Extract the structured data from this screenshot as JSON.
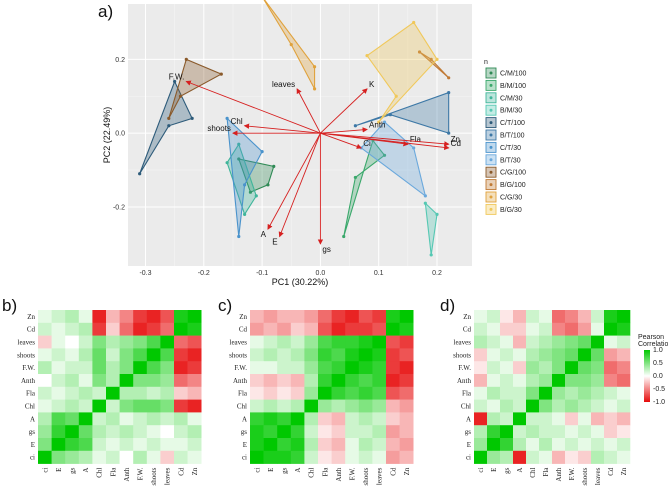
{
  "panels": {
    "a": "a)",
    "b": "b)",
    "c": "c)",
    "d": "d)"
  },
  "chart_data": [
    {
      "type": "scatter",
      "subtype": "pca-biplot",
      "title": "",
      "xlabel": "PC1 (30.22%)",
      "ylabel": "PC2 (22.49%)",
      "xlim": [
        -0.33,
        0.26
      ],
      "ylim": [
        -0.36,
        0.35
      ],
      "xticks": [
        -0.3,
        -0.2,
        -0.1,
        0.0,
        0.1,
        0.2
      ],
      "xtick_labels": [
        "-0.3",
        "-0.2",
        "-0.1",
        "0.0",
        "0.1",
        "0.2"
      ],
      "yticks": [
        -0.2,
        0.0,
        0.2
      ],
      "ytick_labels": [
        "-0.2",
        "0.0",
        "0.2"
      ],
      "legend_title": "n",
      "groups": [
        {
          "name": "C/M/100",
          "color": "#2f8a55",
          "points": [
            [
              -0.14,
              -0.07
            ],
            [
              -0.08,
              -0.09
            ],
            [
              -0.09,
              -0.14
            ],
            [
              -0.12,
              -0.16
            ]
          ]
        },
        {
          "name": "B/M/100",
          "color": "#3aa86b",
          "points": [
            [
              0.04,
              -0.28
            ],
            [
              0.09,
              -0.02
            ],
            [
              0.11,
              -0.06
            ],
            [
              0.06,
              -0.12
            ]
          ]
        },
        {
          "name": "C/M/30",
          "color": "#3fb59a",
          "points": [
            [
              -0.16,
              -0.08
            ],
            [
              -0.14,
              -0.03
            ],
            [
              -0.11,
              -0.17
            ],
            [
              -0.13,
              -0.22
            ]
          ]
        },
        {
          "name": "B/M/30",
          "color": "#55c8b3",
          "points": [
            [
              0.18,
              -0.19
            ],
            [
              0.2,
              -0.22
            ],
            [
              0.19,
              -0.33
            ]
          ]
        },
        {
          "name": "C/T/100",
          "color": "#2d5b7a",
          "points": [
            [
              -0.31,
              -0.11
            ],
            [
              -0.25,
              0.14
            ],
            [
              -0.22,
              0.04
            ],
            [
              -0.26,
              0.02
            ]
          ]
        },
        {
          "name": "B/T/100",
          "color": "#3d78a6",
          "points": [
            [
              0.06,
              0.02
            ],
            [
              0.22,
              0.11
            ],
            [
              0.22,
              0.0
            ],
            [
              0.12,
              0.05
            ]
          ]
        },
        {
          "name": "C/T/30",
          "color": "#4a93cc",
          "points": [
            [
              -0.16,
              0.04
            ],
            [
              -0.14,
              -0.28
            ],
            [
              -0.13,
              -0.14
            ],
            [
              -0.1,
              -0.05
            ]
          ]
        },
        {
          "name": "B/T/30",
          "color": "#6aa8dc",
          "points": [
            [
              0.07,
              -0.04
            ],
            [
              0.11,
              0.03
            ],
            [
              0.16,
              -0.04
            ],
            [
              0.18,
              -0.17
            ]
          ]
        },
        {
          "name": "C/G/100",
          "color": "#8a5a2b",
          "points": [
            [
              -0.26,
              0.04
            ],
            [
              -0.23,
              0.2
            ],
            [
              -0.17,
              0.16
            ],
            [
              -0.24,
              0.1
            ]
          ]
        },
        {
          "name": "B/G/100",
          "color": "#c07a35",
          "points": [
            [
              0.17,
              0.22
            ],
            [
              0.22,
              0.15
            ],
            [
              0.19,
              0.2
            ]
          ]
        },
        {
          "name": "C/G/30",
          "color": "#e0a23c",
          "points": [
            [
              -0.1,
              0.37
            ],
            [
              -0.01,
              0.18
            ],
            [
              -0.01,
              0.12
            ],
            [
              -0.05,
              0.24
            ]
          ]
        },
        {
          "name": "B/G/30",
          "color": "#f0c85a",
          "points": [
            [
              0.08,
              0.21
            ],
            [
              0.16,
              0.3
            ],
            [
              0.2,
              0.2
            ],
            [
              0.1,
              0.03
            ],
            [
              0.13,
              0.1
            ]
          ]
        }
      ],
      "loadings": [
        {
          "label": "F.W.",
          "x": -0.23,
          "y": 0.14
        },
        {
          "label": "leaves",
          "x": -0.04,
          "y": 0.12
        },
        {
          "label": "K",
          "x": 0.08,
          "y": 0.12
        },
        {
          "label": "Chl",
          "x": -0.13,
          "y": 0.02
        },
        {
          "label": "shoots",
          "x": -0.15,
          "y": -0.0
        },
        {
          "label": "Anth",
          "x": 0.08,
          "y": 0.01
        },
        {
          "label": "Ci",
          "x": 0.07,
          "y": -0.04
        },
        {
          "label": "Fla",
          "x": 0.15,
          "y": -0.03
        },
        {
          "label": "Zn",
          "x": 0.22,
          "y": -0.03
        },
        {
          "label": "Cd",
          "x": 0.22,
          "y": -0.04
        },
        {
          "label": "A",
          "x": -0.09,
          "y": -0.26
        },
        {
          "label": "E",
          "x": -0.07,
          "y": -0.28
        },
        {
          "label": "gs",
          "x": -0.0,
          "y": -0.3
        }
      ]
    },
    {
      "type": "heatmap",
      "panel": "b)",
      "rows": [
        "Zn",
        "Cd",
        "leaves",
        "shoots",
        "F.W.",
        "Anth",
        "Fla",
        "Chl",
        "A",
        "gs",
        "E",
        "ci"
      ],
      "columns": [
        "ci",
        "E",
        "gs",
        "A",
        "Chl",
        "Fla",
        "Anth",
        "F.W.",
        "shoots",
        "leaves",
        "Cd",
        "Zn"
      ],
      "values": [
        [
          0.1,
          0.2,
          0.3,
          0.1,
          -0.9,
          -0.3,
          -0.5,
          -0.8,
          -0.9,
          -0.7,
          0.9,
          1
        ],
        [
          0.2,
          0.1,
          0.2,
          0.3,
          -0.8,
          -0.2,
          -0.6,
          -0.9,
          -0.8,
          -0.6,
          1,
          0.9
        ],
        [
          -0.2,
          0.1,
          0.0,
          0.2,
          0.5,
          0.3,
          0.4,
          0.5,
          0.7,
          1,
          -0.6,
          -0.7
        ],
        [
          0.1,
          0.2,
          0.1,
          0.3,
          0.6,
          0.2,
          0.5,
          0.7,
          1,
          0.7,
          -0.8,
          -0.9
        ],
        [
          0.3,
          0.1,
          0.2,
          0.2,
          0.6,
          0.3,
          0.5,
          1,
          0.7,
          0.5,
          -0.9,
          -0.8
        ],
        [
          0.0,
          0.2,
          0.3,
          0.1,
          0.5,
          0.3,
          1,
          0.5,
          0.5,
          0.4,
          -0.6,
          -0.5
        ],
        [
          0.2,
          0.1,
          0.2,
          0.3,
          0.2,
          1,
          0.3,
          0.3,
          0.2,
          0.3,
          -0.2,
          -0.3
        ],
        [
          0.1,
          0.2,
          0.3,
          0.2,
          1,
          0.2,
          0.5,
          0.6,
          0.6,
          0.5,
          -0.8,
          -0.9
        ],
        [
          0.3,
          0.7,
          0.6,
          1,
          0.2,
          0.3,
          0.1,
          0.2,
          0.3,
          0.2,
          0.3,
          0.1
        ],
        [
          0.4,
          0.8,
          1,
          0.6,
          0.3,
          0.2,
          0.3,
          0.2,
          0.1,
          0.0,
          0.2,
          0.3
        ],
        [
          0.5,
          1,
          0.8,
          0.7,
          0.2,
          0.1,
          0.2,
          0.1,
          0.2,
          0.1,
          0.1,
          0.2
        ],
        [
          1,
          0.5,
          0.4,
          0.3,
          0.1,
          0.2,
          0.0,
          0.3,
          0.1,
          -0.2,
          0.2,
          0.1
        ]
      ]
    },
    {
      "type": "heatmap",
      "panel": "c)",
      "rows": [
        "Zn",
        "Cd",
        "leaves",
        "shoots",
        "F.W.",
        "Anth",
        "Fla",
        "Chl",
        "A",
        "gs",
        "E",
        "ci"
      ],
      "columns": [
        "ci",
        "E",
        "gs",
        "A",
        "Chl",
        "Fla",
        "Anth",
        "F.W.",
        "shoots",
        "leaves",
        "Cd",
        "Zn"
      ],
      "values": [
        [
          -0.3,
          -0.4,
          -0.3,
          -0.3,
          -0.4,
          -0.6,
          -0.8,
          -0.9,
          -0.7,
          -0.8,
          0.9,
          1
        ],
        [
          -0.4,
          -0.3,
          -0.4,
          -0.2,
          -0.3,
          -0.7,
          -0.9,
          -0.8,
          -0.8,
          -0.7,
          1,
          0.9
        ],
        [
          0.1,
          0.2,
          0.3,
          0.2,
          0.4,
          0.7,
          0.8,
          0.8,
          0.9,
          1,
          -0.7,
          -0.8
        ],
        [
          0.2,
          0.3,
          0.2,
          0.3,
          0.5,
          0.8,
          0.7,
          0.9,
          1,
          0.9,
          -0.8,
          -0.7
        ],
        [
          0.1,
          0.1,
          0.2,
          0.2,
          0.4,
          0.7,
          0.8,
          1,
          0.9,
          0.8,
          -0.8,
          -0.9
        ],
        [
          -0.2,
          -0.3,
          -0.2,
          -0.3,
          0.3,
          0.8,
          1,
          0.8,
          0.7,
          0.8,
          -0.9,
          -0.8
        ],
        [
          -0.1,
          -0.2,
          -0.1,
          -0.2,
          0.4,
          1,
          0.8,
          0.7,
          0.8,
          0.7,
          -0.7,
          -0.6
        ],
        [
          0.2,
          0.3,
          0.2,
          0.3,
          1,
          0.4,
          0.3,
          0.4,
          0.5,
          0.4,
          -0.3,
          -0.4
        ],
        [
          0.8,
          0.9,
          0.8,
          1,
          0.3,
          -0.2,
          -0.3,
          0.2,
          0.3,
          0.2,
          -0.2,
          -0.3
        ],
        [
          0.9,
          0.8,
          1,
          0.8,
          0.2,
          -0.1,
          -0.2,
          0.2,
          0.2,
          0.3,
          -0.4,
          -0.3
        ],
        [
          0.9,
          1,
          0.8,
          0.9,
          0.3,
          -0.2,
          -0.3,
          0.1,
          0.3,
          0.2,
          -0.3,
          -0.4
        ],
        [
          1,
          0.9,
          0.9,
          0.8,
          0.2,
          -0.1,
          -0.2,
          0.1,
          0.2,
          0.1,
          -0.4,
          -0.3
        ]
      ]
    },
    {
      "type": "heatmap",
      "panel": "d)",
      "rows": [
        "Zn",
        "Cd",
        "leaves",
        "shoots",
        "F.W.",
        "Anth",
        "Fla",
        "Chl",
        "A",
        "gs",
        "E",
        "ci"
      ],
      "columns": [
        "ci",
        "E",
        "gs",
        "A",
        "Chl",
        "Fla",
        "Anth",
        "F.W.",
        "shoots",
        "leaves",
        "Cd",
        "Zn"
      ],
      "values": [
        [
          0.1,
          0.2,
          -0.1,
          -0.3,
          0.2,
          0.1,
          -0.6,
          -0.5,
          -0.3,
          0.2,
          0.9,
          1
        ],
        [
          0.2,
          0.1,
          -0.2,
          -0.2,
          0.1,
          0.2,
          -0.5,
          -0.6,
          -0.4,
          0.1,
          1,
          0.9
        ],
        [
          0.3,
          0.2,
          0.1,
          -0.3,
          0.2,
          0.3,
          0.4,
          0.5,
          0.6,
          1,
          0.1,
          0.2
        ],
        [
          -0.2,
          0.1,
          0.2,
          0.1,
          0.3,
          0.4,
          0.5,
          0.6,
          1,
          0.6,
          -0.4,
          -0.3
        ],
        [
          -0.1,
          0.2,
          0.1,
          -0.2,
          0.4,
          0.3,
          0.5,
          1,
          0.6,
          0.5,
          -0.6,
          -0.5
        ],
        [
          -0.3,
          0.1,
          0.2,
          0.1,
          0.3,
          0.4,
          1,
          0.5,
          0.5,
          0.4,
          -0.5,
          -0.6
        ],
        [
          0.1,
          0.3,
          0.2,
          0.2,
          0.5,
          1,
          0.4,
          0.3,
          0.4,
          0.3,
          0.2,
          0.1
        ],
        [
          0.2,
          0.1,
          0.3,
          0.2,
          1,
          0.5,
          0.3,
          0.4,
          0.3,
          0.2,
          0.1,
          0.2
        ],
        [
          -0.9,
          0.3,
          0.2,
          1,
          0.2,
          0.2,
          0.1,
          -0.2,
          0.1,
          -0.3,
          -0.2,
          -0.3
        ],
        [
          0.3,
          0.8,
          1,
          0.2,
          0.3,
          0.2,
          0.2,
          0.1,
          0.2,
          0.1,
          -0.2,
          -0.1
        ],
        [
          0.4,
          1,
          0.8,
          0.3,
          0.1,
          0.3,
          0.1,
          0.2,
          0.1,
          0.2,
          0.1,
          0.2
        ],
        [
          1,
          0.4,
          0.3,
          -0.9,
          0.2,
          0.1,
          -0.3,
          -0.1,
          -0.2,
          0.3,
          0.2,
          0.1
        ]
      ],
      "colorbar": {
        "title": "Pearson Correlation",
        "ticks": [
          "1.0",
          "0.5",
          "0.0",
          "-0.5",
          "-1.0"
        ]
      }
    }
  ]
}
